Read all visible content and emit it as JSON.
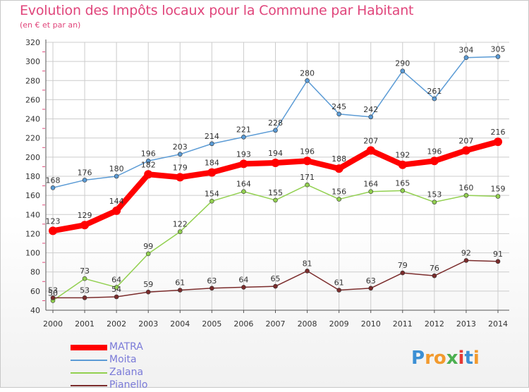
{
  "header": {
    "title": "Evolution des Impôts locaux pour la Commune par Habitant",
    "subtitle": "(en € et par an)"
  },
  "logo": {
    "text": "Proxiti"
  },
  "colors": {
    "title": "#e0457b",
    "axis": "#555555",
    "grid": "#cccccc",
    "tickred": "#e04a7a"
  },
  "chart_data": {
    "type": "line",
    "title": "Evolution des Impôts locaux pour la Commune par Habitant",
    "subtitle": "(en € et par an)",
    "xlabel": "",
    "ylabel": "",
    "x": [
      "2000",
      "2001",
      "2002",
      "2003",
      "2004",
      "2005",
      "2006",
      "2007",
      "2008",
      "2009",
      "2010",
      "2011",
      "2012",
      "2013",
      "2014"
    ],
    "ylim": [
      40,
      320
    ],
    "yticks": [
      40,
      60,
      80,
      100,
      120,
      140,
      160,
      180,
      200,
      220,
      240,
      260,
      280,
      300,
      320
    ],
    "grid": true,
    "legend": "bottom-left",
    "series": [
      {
        "name": "MATRA",
        "color": "#ff0000",
        "values": [
          123,
          129,
          144,
          182,
          179,
          184,
          193,
          194,
          196,
          188,
          207,
          192,
          196,
          207,
          216
        ],
        "labels": [
          "123",
          "129",
          "144",
          "182",
          "179",
          "184",
          "193",
          "194",
          "196",
          "188",
          "207",
          "192",
          "196",
          "207",
          "216"
        ]
      },
      {
        "name": "Moita",
        "color": "#5b9bd5",
        "values": [
          168,
          176,
          180,
          196,
          203,
          214,
          221,
          228,
          280,
          245,
          242,
          290,
          261,
          304,
          305
        ],
        "labels": [
          "168",
          "176",
          "180",
          "196",
          "203",
          "214",
          "221",
          "228",
          "280",
          "245",
          "242",
          "290",
          "261",
          "304",
          "305"
        ]
      },
      {
        "name": "Zalana",
        "color": "#92d050",
        "values": [
          50,
          73,
          64,
          99,
          122,
          154,
          164,
          155,
          171,
          156,
          164,
          165,
          153,
          160,
          159
        ],
        "labels": [
          "50",
          "73",
          "64",
          "99",
          "122",
          "154",
          "164",
          "155",
          "171",
          "156",
          "164",
          "165",
          "153",
          "160",
          "159"
        ]
      },
      {
        "name": "Pianello",
        "color": "#7b2c2c",
        "values": [
          53,
          53,
          54,
          59,
          61,
          63,
          64,
          65,
          81,
          61,
          63,
          79,
          76,
          92,
          91
        ],
        "labels": [
          "53",
          "53",
          "54",
          "59",
          "61",
          "63",
          "64",
          "65",
          "81",
          "61",
          "63",
          "79",
          "76",
          "92",
          "91"
        ]
      }
    ]
  }
}
